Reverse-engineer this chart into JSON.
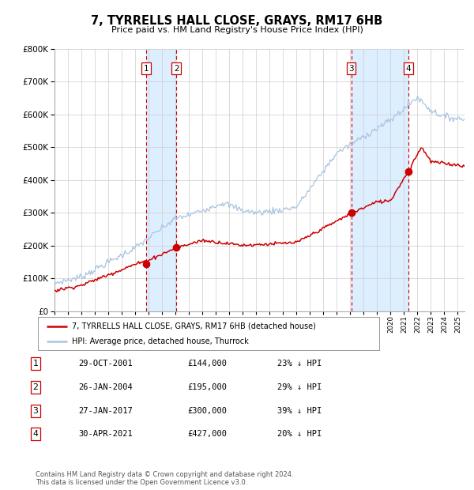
{
  "title": "7, TYRRELLS HALL CLOSE, GRAYS, RM17 6HB",
  "subtitle": "Price paid vs. HM Land Registry's House Price Index (HPI)",
  "ylim": [
    0,
    800000
  ],
  "yticks": [
    0,
    100000,
    200000,
    300000,
    400000,
    500000,
    600000,
    700000,
    800000
  ],
  "ytick_labels": [
    "£0",
    "£100K",
    "£200K",
    "£300K",
    "£400K",
    "£500K",
    "£600K",
    "£700K",
    "£800K"
  ],
  "hpi_color": "#aac4e0",
  "price_color": "#cc0000",
  "vline_color": "#cc0000",
  "vspan_color": "#ddeeff",
  "grid_color": "#cccccc",
  "background_color": "#ffffff",
  "legend_label_price": "7, TYRRELLS HALL CLOSE, GRAYS, RM17 6HB (detached house)",
  "legend_label_hpi": "HPI: Average price, detached house, Thurrock",
  "footnote": "Contains HM Land Registry data © Crown copyright and database right 2024.\nThis data is licensed under the Open Government Licence v3.0.",
  "sales": [
    {
      "num": 1,
      "year": 2001.83,
      "price": 144000,
      "date": "29-OCT-2001",
      "pct": "23%",
      "dir": "↓"
    },
    {
      "num": 2,
      "year": 2004.07,
      "price": 195000,
      "date": "26-JAN-2004",
      "pct": "29%",
      "dir": "↓"
    },
    {
      "num": 3,
      "year": 2017.07,
      "price": 300000,
      "date": "27-JAN-2017",
      "pct": "39%",
      "dir": "↓"
    },
    {
      "num": 4,
      "year": 2021.33,
      "price": 427000,
      "date": "30-APR-2021",
      "pct": "20%",
      "dir": "↓"
    }
  ],
  "table_rows": [
    [
      "1",
      "29-OCT-2001",
      "£144,000",
      "23% ↓ HPI"
    ],
    [
      "2",
      "26-JAN-2004",
      "£195,000",
      "29% ↓ HPI"
    ],
    [
      "3",
      "27-JAN-2017",
      "£300,000",
      "39% ↓ HPI"
    ],
    [
      "4",
      "30-APR-2021",
      "£427,000",
      "20% ↓ HPI"
    ]
  ],
  "xmin": 1995,
  "xmax": 2025.5
}
